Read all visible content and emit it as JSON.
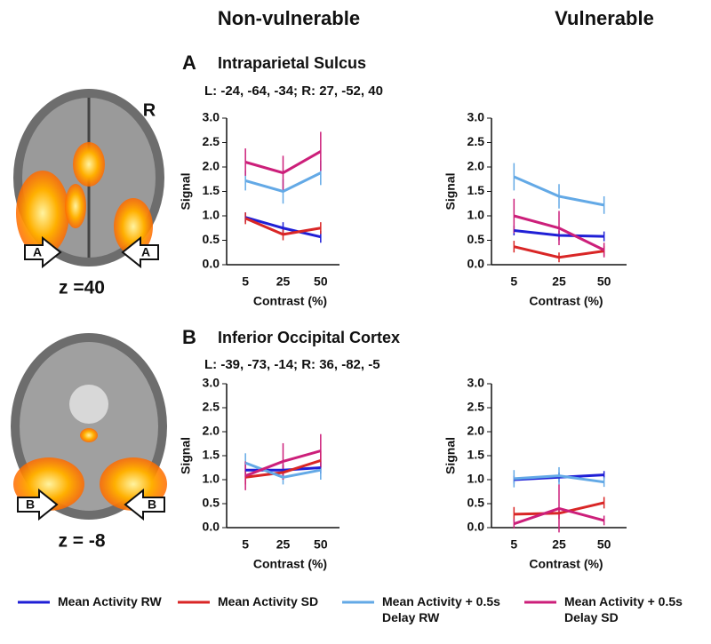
{
  "columns": [
    "Non-vulnerable",
    "Vulnerable"
  ],
  "orientation_label": "R",
  "panels": [
    {
      "letter": "A",
      "title": "Intraparietal Sulcus",
      "coords": "L: -24, -64, -34; R: 27, -52, 40",
      "z_label": "z =40",
      "arrow_label": "A"
    },
    {
      "letter": "B",
      "title": "Inferior Occipital Cortex",
      "coords": "L: -39, -73, -14; R: 36, -82, -5",
      "z_label": "z = -8",
      "arrow_label": "B"
    }
  ],
  "chart_data": [
    {
      "type": "line",
      "categories": [
        "5",
        "25",
        "50"
      ],
      "xlabel": "Contrast (%)",
      "ylabel": "Signal",
      "ylim": [
        0,
        3
      ],
      "yticks": [
        {
          "value": 0,
          "label": "0.0"
        },
        {
          "value": 0.5,
          "label": "0.5"
        },
        {
          "value": 1,
          "label": "1.0"
        },
        {
          "value": 1.5,
          "label": "1.5"
        },
        {
          "value": 2,
          "label": "2.0"
        },
        {
          "value": 2.5,
          "label": "2.5"
        },
        {
          "value": 3,
          "label": "3.0"
        }
      ],
      "series": [
        {
          "name": "Mean Activity RW",
          "color": "#1f1fd6",
          "values": [
            0.97,
            0.75,
            0.57
          ],
          "errors": [
            0.1,
            0.12,
            0.12
          ]
        },
        {
          "name": "Mean Activity SD",
          "color": "#d92626",
          "values": [
            0.95,
            0.62,
            0.75
          ],
          "errors": [
            0.12,
            0.12,
            0.12
          ]
        },
        {
          "name": "Mean Activity + 0.5s Delay RW",
          "color": "#63a9e6",
          "values": [
            1.72,
            1.5,
            1.88
          ],
          "errors": [
            0.2,
            0.25,
            0.25
          ]
        },
        {
          "name": "Mean Activity + 0.5s Delay SD",
          "color": "#cc1f7a",
          "values": [
            2.1,
            1.88,
            2.32
          ],
          "errors": [
            0.28,
            0.35,
            0.4
          ]
        }
      ]
    },
    {
      "type": "line",
      "categories": [
        "5",
        "25",
        "50"
      ],
      "xlabel": "Contrast (%)",
      "ylabel": "Signal",
      "ylim": [
        0,
        3
      ],
      "yticks": [
        {
          "value": 0,
          "label": "0.0"
        },
        {
          "value": 0.5,
          "label": "0.5"
        },
        {
          "value": 1,
          "label": "1.0"
        },
        {
          "value": 1.5,
          "label": "1.5"
        },
        {
          "value": 2,
          "label": "2.0"
        },
        {
          "value": 2.5,
          "label": "2.5"
        },
        {
          "value": 3,
          "label": "3.0"
        }
      ],
      "series": [
        {
          "color": "#1f1fd6",
          "values": [
            0.7,
            0.6,
            0.58
          ],
          "errors": [
            0.1,
            0.1,
            0.1
          ]
        },
        {
          "color": "#d92626",
          "values": [
            0.37,
            0.15,
            0.28
          ],
          "errors": [
            0.12,
            0.1,
            0.1
          ]
        },
        {
          "color": "#63a9e6",
          "values": [
            1.8,
            1.4,
            1.22
          ],
          "errors": [
            0.28,
            0.25,
            0.18
          ]
        },
        {
          "color": "#cc1f7a",
          "values": [
            1.0,
            0.75,
            0.3
          ],
          "errors": [
            0.35,
            0.35,
            0.15
          ]
        }
      ]
    },
    {
      "type": "line",
      "categories": [
        "5",
        "25",
        "50"
      ],
      "xlabel": "Contrast (%)",
      "ylabel": "Signal",
      "ylim": [
        0,
        3
      ],
      "yticks": [
        {
          "value": 0,
          "label": "0.0"
        },
        {
          "value": 0.5,
          "label": "0.5"
        },
        {
          "value": 1,
          "label": "1.0"
        },
        {
          "value": 1.5,
          "label": "1.5"
        },
        {
          "value": 2,
          "label": "2.0"
        },
        {
          "value": 2.5,
          "label": "2.5"
        },
        {
          "value": 3,
          "label": "3.0"
        }
      ],
      "series": [
        {
          "color": "#1f1fd6",
          "values": [
            1.2,
            1.2,
            1.25
          ],
          "errors": [
            0.15,
            0.12,
            0.12
          ]
        },
        {
          "color": "#d92626",
          "values": [
            1.05,
            1.15,
            1.4
          ],
          "errors": [
            0.15,
            0.15,
            0.2
          ]
        },
        {
          "color": "#63a9e6",
          "values": [
            1.35,
            1.05,
            1.2
          ],
          "errors": [
            0.2,
            0.15,
            0.2
          ]
        },
        {
          "color": "#cc1f7a",
          "values": [
            1.08,
            1.38,
            1.6
          ],
          "errors": [
            0.3,
            0.38,
            0.35
          ]
        }
      ]
    },
    {
      "type": "line",
      "categories": [
        "5",
        "25",
        "50"
      ],
      "xlabel": "Contrast (%)",
      "ylabel": "Signal",
      "ylim": [
        0,
        3
      ],
      "yticks": [
        {
          "value": 0,
          "label": "0.0"
        },
        {
          "value": 0.5,
          "label": "0.5"
        },
        {
          "value": 1,
          "label": "1.0"
        },
        {
          "value": 1.5,
          "label": "1.5"
        },
        {
          "value": 2,
          "label": "2.0"
        },
        {
          "value": 2.5,
          "label": "2.5"
        },
        {
          "value": 3,
          "label": "3.0"
        }
      ],
      "series": [
        {
          "color": "#1f1fd6",
          "values": [
            1.0,
            1.05,
            1.1
          ],
          "errors": [
            0.08,
            0.1,
            0.08
          ]
        },
        {
          "color": "#d92626",
          "values": [
            0.28,
            0.3,
            0.52
          ],
          "errors": [
            0.15,
            0.12,
            0.12
          ]
        },
        {
          "color": "#63a9e6",
          "values": [
            1.02,
            1.08,
            0.95
          ],
          "errors": [
            0.18,
            0.18,
            0.1
          ]
        },
        {
          "color": "#cc1f7a",
          "values": [
            0.08,
            0.4,
            0.15
          ],
          "errors": [
            0.1,
            0.5,
            0.1
          ]
        }
      ]
    }
  ]
}
